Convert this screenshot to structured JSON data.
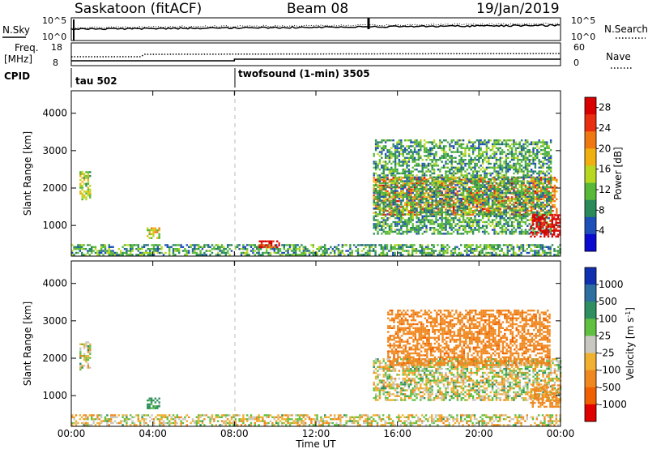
{
  "header": {
    "station": "Saskatoon (fitACF)",
    "beam": "Beam 08",
    "date": "19/Jan/2019"
  },
  "sky_panel": {
    "left_label": "N.Sky",
    "left_ticks": [
      "10^5",
      "10^0"
    ],
    "right_ticks": [
      "10^5",
      "10^0"
    ],
    "right_label": "N.Search"
  },
  "freq_panel": {
    "left_label_1": "Freq.",
    "left_label_2": "[MHz]",
    "left_ticks": [
      "18",
      "8"
    ],
    "right_ticks": [
      "60",
      "0"
    ],
    "right_label": "Nave"
  },
  "cpid": {
    "label": "CPID",
    "segments": [
      {
        "label": "tau 502",
        "start_hour": 0
      },
      {
        "label": "twofsound (1-min) 3505",
        "start_hour": 8
      }
    ]
  },
  "x_axis": {
    "title": "Time UT",
    "ticks": [
      "00:00",
      "04:00",
      "08:00",
      "12:00",
      "16:00",
      "20:00",
      "00:00"
    ]
  },
  "chart_data": [
    {
      "type": "heatmap",
      "title": "",
      "xlabel": "Time UT",
      "ylabel": "Slant Range [km]",
      "xlim_hours": [
        0,
        24
      ],
      "ylim": [
        180,
        4600
      ],
      "yticks": [
        "1000",
        "2000",
        "3000",
        "4000"
      ],
      "colorbar": {
        "label": "Power [dB]",
        "ticks": [
          "4",
          "8",
          "12",
          "16",
          "20",
          "24",
          "28"
        ],
        "range": [
          0,
          30
        ],
        "colors": [
          "#0a0ad0",
          "#1f4fb8",
          "#2a8a5a",
          "#58b838",
          "#b8d820",
          "#f0b010",
          "#f07810",
          "#e83010",
          "#d80000"
        ]
      },
      "echo_regions": [
        {
          "t0": 0.0,
          "t1": 24.0,
          "r0": 190,
          "r1": 500,
          "value": 10
        },
        {
          "t0": 0.4,
          "t1": 0.9,
          "r0": 1700,
          "r1": 2450,
          "value": 14
        },
        {
          "t0": 3.7,
          "t1": 4.3,
          "r0": 650,
          "r1": 950,
          "value": 16
        },
        {
          "t0": 9.2,
          "t1": 10.2,
          "r0": 400,
          "r1": 600,
          "value": 27
        },
        {
          "t0": 14.8,
          "t1": 23.8,
          "r0": 1300,
          "r1": 2300,
          "value": 22
        },
        {
          "t0": 14.8,
          "t1": 23.5,
          "r0": 800,
          "r1": 3300,
          "value": 10
        },
        {
          "t0": 22.5,
          "t1": 24.0,
          "r0": 700,
          "r1": 1300,
          "value": 29
        }
      ]
    },
    {
      "type": "heatmap",
      "title": "",
      "xlabel": "Time UT",
      "ylabel": "Slant Range [km]",
      "xlim_hours": [
        0,
        24
      ],
      "ylim": [
        180,
        4600
      ],
      "yticks": [
        "1000",
        "2000",
        "3000",
        "4000"
      ],
      "colorbar": {
        "label": "Velocity [m s^-1]",
        "ticks": [
          "1000",
          "500",
          "100",
          "25",
          "-25",
          "-100",
          "-500",
          "-1000"
        ],
        "colors": [
          "#1030b0",
          "#2f6fa0",
          "#2f8f60",
          "#60c040",
          "#c8c8c0",
          "#f0b030",
          "#f08820",
          "#f06000",
          "#e00000"
        ]
      },
      "echo_regions": [
        {
          "t0": 0.0,
          "t1": 24.0,
          "r0": 190,
          "r1": 500,
          "value": -25
        },
        {
          "t0": 0.4,
          "t1": 0.9,
          "r0": 1700,
          "r1": 2450,
          "value": 0
        },
        {
          "t0": 3.7,
          "t1": 4.3,
          "r0": 650,
          "r1": 950,
          "value": 150
        },
        {
          "t0": 14.8,
          "t1": 24.0,
          "r0": 900,
          "r1": 2000,
          "value": 0
        },
        {
          "t0": 15.5,
          "t1": 23.5,
          "r0": 1800,
          "r1": 3300,
          "value": -400
        },
        {
          "t0": 22.5,
          "t1": 24.0,
          "r0": 700,
          "r1": 1300,
          "value": -200
        }
      ]
    }
  ]
}
